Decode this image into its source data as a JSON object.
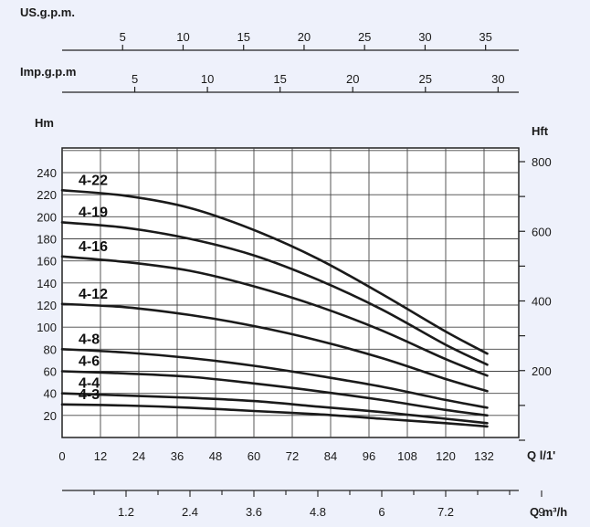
{
  "chart_data": {
    "type": "line",
    "units": {
      "us_gpm": "US.g.p.m.",
      "imp_gpm": "Imp.g.p.m",
      "head_m": "Hm",
      "head_ft": "Hft",
      "flow_lpm": "Q l/1'",
      "flow_m3h": "Q m³/h"
    },
    "x_lpm": {
      "range": [
        0,
        140
      ],
      "ticks": [
        0,
        12,
        24,
        36,
        48,
        60,
        72,
        84,
        96,
        108,
        120,
        132
      ],
      "tick_labels": [
        "0",
        "12",
        "24",
        "36",
        "48",
        "60",
        "72",
        "84",
        "96",
        "108",
        "120",
        "132"
      ]
    },
    "x_us_gpm": {
      "range": [
        0,
        37
      ],
      "ticks": [
        5,
        10,
        15,
        20,
        25,
        30,
        35
      ],
      "tick_labels": [
        "5",
        "10",
        "15",
        "20",
        "25",
        "30",
        "35"
      ]
    },
    "x_imp_gpm": {
      "range": [
        0,
        30.8
      ],
      "ticks": [
        5,
        10,
        15,
        20,
        25,
        30
      ],
      "tick_labels": [
        "5",
        "10",
        "15",
        "20",
        "25",
        "30"
      ]
    },
    "x_m3h": {
      "range": [
        0,
        9.4
      ],
      "ticks": [
        1.2,
        2.4,
        3.6,
        4.8,
        6,
        7.2,
        9
      ],
      "tick_labels": [
        "1.2",
        "2.4",
        "3.6",
        "4.8",
        "6",
        "7.2",
        "9"
      ]
    },
    "y_m": {
      "range": [
        0,
        250
      ],
      "ticks": [
        20,
        40,
        60,
        80,
        100,
        120,
        140,
        160,
        180,
        200,
        220,
        240
      ],
      "tick_labels": [
        "20",
        "40",
        "60",
        "80",
        "100",
        "120",
        "140",
        "160",
        "180",
        "200",
        "220",
        "240"
      ]
    },
    "y_ft": {
      "range": [
        0,
        820
      ],
      "ticks": [
        200,
        400,
        600,
        800
      ],
      "tick_labels": [
        "200",
        "400",
        "600",
        "800"
      ]
    },
    "grid": true,
    "series": [
      {
        "name": "4-22",
        "x": [
          0,
          20,
          40,
          60,
          80,
          100,
          120,
          133
        ],
        "y": [
          224,
          219,
          208,
          188,
          162,
          130,
          96,
          76
        ]
      },
      {
        "name": "4-19",
        "x": [
          0,
          20,
          40,
          60,
          80,
          100,
          120,
          133
        ],
        "y": [
          195,
          190,
          180,
          165,
          143,
          116,
          84,
          66
        ]
      },
      {
        "name": "4-16",
        "x": [
          0,
          20,
          40,
          60,
          80,
          100,
          120,
          133
        ],
        "y": [
          164,
          159,
          151,
          137,
          119,
          97,
          71,
          56
        ]
      },
      {
        "name": "4-12",
        "x": [
          0,
          20,
          40,
          60,
          80,
          100,
          120,
          133
        ],
        "y": [
          121,
          118,
          111,
          101,
          88,
          72,
          53,
          42
        ]
      },
      {
        "name": "4-8",
        "x": [
          0,
          20,
          40,
          60,
          80,
          100,
          120,
          133
        ],
        "y": [
          80,
          77,
          72,
          65,
          56,
          46,
          34,
          27
        ]
      },
      {
        "name": "4-6",
        "x": [
          0,
          20,
          40,
          60,
          80,
          100,
          120,
          133
        ],
        "y": [
          60,
          58,
          55,
          49,
          42,
          34,
          25,
          20
        ]
      },
      {
        "name": "4-4",
        "x": [
          0,
          20,
          40,
          60,
          80,
          100,
          120,
          133
        ],
        "y": [
          40,
          38,
          36,
          33,
          28,
          23,
          17,
          13
        ]
      },
      {
        "name": "4-3",
        "x": [
          0,
          20,
          40,
          60,
          80,
          100,
          120,
          133
        ],
        "y": [
          30,
          29,
          27,
          24,
          21,
          17,
          13,
          10
        ]
      }
    ]
  }
}
